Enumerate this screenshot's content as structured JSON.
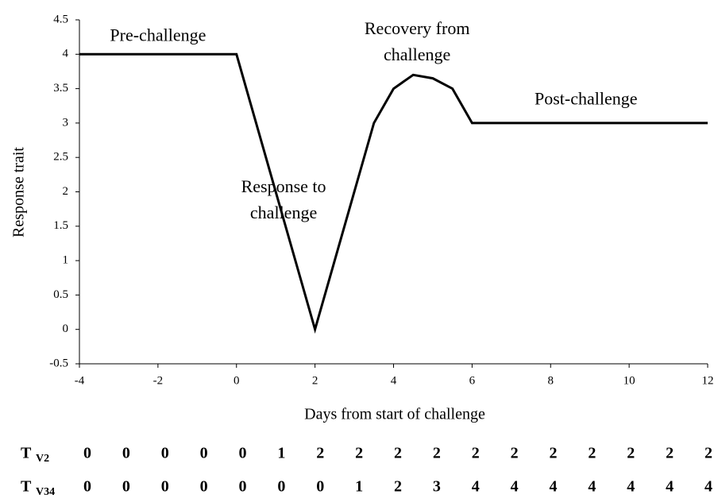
{
  "chart_data": {
    "type": "line",
    "x": [
      -4,
      0,
      2,
      3.5,
      4,
      4.5,
      5,
      5.5,
      6,
      12
    ],
    "values": [
      4,
      4,
      0,
      3,
      3.5,
      3.7,
      3.65,
      3.5,
      3,
      3
    ],
    "color": "#000000",
    "xlabel": "Days  from start of challenge",
    "ylabel": "Response trait",
    "xlim": [
      -4,
      12
    ],
    "xticks": [
      -4,
      -2,
      0,
      2,
      4,
      6,
      8,
      10,
      12
    ],
    "ylim": [
      -0.5,
      4.5
    ],
    "yticks": [
      -0.5,
      0,
      0.5,
      1,
      1.5,
      2,
      2.5,
      3,
      3.5,
      4,
      4.5
    ],
    "annotations": [
      {
        "lines": [
          "Pre-challenge"
        ],
        "x": -2,
        "y": 4.25
      },
      {
        "lines": [
          "Response to",
          "challenge"
        ],
        "x": 1.2,
        "y": 2.05
      },
      {
        "lines": [
          "Recovery from",
          "challenge"
        ],
        "x": 4.6,
        "y": 4.35
      },
      {
        "lines": [
          "Post-challenge"
        ],
        "x": 8.9,
        "y": 3.33
      }
    ]
  },
  "table": {
    "rows": [
      {
        "label": "T",
        "sub": "V2",
        "values": [
          0,
          0,
          0,
          0,
          0,
          1,
          2,
          2,
          2,
          2,
          2,
          2,
          2,
          2,
          2,
          2,
          2
        ]
      },
      {
        "label": "T",
        "sub": "V34",
        "values": [
          0,
          0,
          0,
          0,
          0,
          0,
          0,
          1,
          2,
          3,
          4,
          4,
          4,
          4,
          4,
          4,
          4
        ]
      }
    ]
  }
}
